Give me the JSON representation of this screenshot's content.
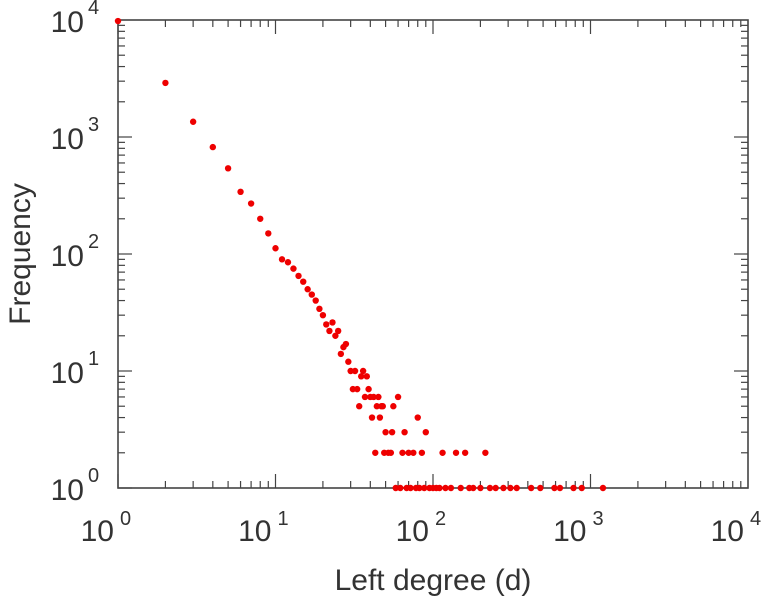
{
  "chart_data": {
    "type": "scatter",
    "xlabel": "Left degree (d)",
    "ylabel": "Frequency",
    "x_scale": "log",
    "y_scale": "log",
    "xlim": [
      1,
      10000
    ],
    "ylim": [
      1,
      10000
    ],
    "x_ticks": [
      {
        "base": "10",
        "exp": "0",
        "value": 1
      },
      {
        "base": "10",
        "exp": "1",
        "value": 10
      },
      {
        "base": "10",
        "exp": "2",
        "value": 100
      },
      {
        "base": "10",
        "exp": "3",
        "value": 1000
      },
      {
        "base": "10",
        "exp": "4",
        "value": 10000
      }
    ],
    "y_ticks": [
      {
        "base": "10",
        "exp": "0",
        "value": 1
      },
      {
        "base": "10",
        "exp": "1",
        "value": 10
      },
      {
        "base": "10",
        "exp": "2",
        "value": 100
      },
      {
        "base": "10",
        "exp": "3",
        "value": 1000
      },
      {
        "base": "10",
        "exp": "4",
        "value": 10000
      }
    ],
    "grid": false,
    "marker_color": "#ee0000",
    "points": [
      [
        1,
        9800
      ],
      [
        2,
        2900
      ],
      [
        3,
        1350
      ],
      [
        4,
        820
      ],
      [
        5,
        540
      ],
      [
        6,
        340
      ],
      [
        7,
        270
      ],
      [
        8,
        200
      ],
      [
        9,
        150
      ],
      [
        10,
        112
      ],
      [
        11,
        90
      ],
      [
        12,
        85
      ],
      [
        13,
        75
      ],
      [
        14,
        65
      ],
      [
        15,
        58
      ],
      [
        16,
        50
      ],
      [
        17,
        45
      ],
      [
        18,
        40
      ],
      [
        19,
        34
      ],
      [
        20,
        30
      ],
      [
        21,
        25
      ],
      [
        22,
        22
      ],
      [
        23,
        26
      ],
      [
        24,
        20
      ],
      [
        25,
        22
      ],
      [
        26,
        14
      ],
      [
        27,
        16
      ],
      [
        28,
        17
      ],
      [
        29,
        12
      ],
      [
        30,
        10
      ],
      [
        31,
        7
      ],
      [
        32,
        10
      ],
      [
        33,
        7
      ],
      [
        34,
        5
      ],
      [
        35,
        9
      ],
      [
        36,
        10
      ],
      [
        37,
        6
      ],
      [
        38,
        9
      ],
      [
        39,
        7
      ],
      [
        40,
        6
      ],
      [
        41,
        4
      ],
      [
        42,
        6
      ],
      [
        43,
        2
      ],
      [
        44,
        5
      ],
      [
        45,
        6
      ],
      [
        46,
        4
      ],
      [
        47,
        5
      ],
      [
        48,
        5
      ],
      [
        49,
        2
      ],
      [
        50,
        3
      ],
      [
        52,
        2
      ],
      [
        54,
        2
      ],
      [
        55,
        3
      ],
      [
        56,
        5
      ],
      [
        58,
        1
      ],
      [
        60,
        6
      ],
      [
        62,
        1
      ],
      [
        64,
        2
      ],
      [
        66,
        3
      ],
      [
        68,
        1
      ],
      [
        70,
        2
      ],
      [
        72,
        1
      ],
      [
        75,
        2
      ],
      [
        78,
        1
      ],
      [
        80,
        4
      ],
      [
        82,
        1
      ],
      [
        85,
        2
      ],
      [
        88,
        1
      ],
      [
        90,
        3
      ],
      [
        95,
        1
      ],
      [
        100,
        1
      ],
      [
        105,
        1
      ],
      [
        110,
        1
      ],
      [
        115,
        2
      ],
      [
        120,
        1
      ],
      [
        130,
        1
      ],
      [
        140,
        2
      ],
      [
        150,
        1
      ],
      [
        160,
        2
      ],
      [
        170,
        1
      ],
      [
        180,
        1
      ],
      [
        200,
        1
      ],
      [
        215,
        2
      ],
      [
        230,
        1
      ],
      [
        250,
        1
      ],
      [
        280,
        1
      ],
      [
        310,
        1
      ],
      [
        340,
        1
      ],
      [
        420,
        1
      ],
      [
        480,
        1
      ],
      [
        590,
        1
      ],
      [
        640,
        1
      ],
      [
        780,
        1
      ],
      [
        880,
        1
      ],
      [
        1200,
        1
      ]
    ]
  }
}
